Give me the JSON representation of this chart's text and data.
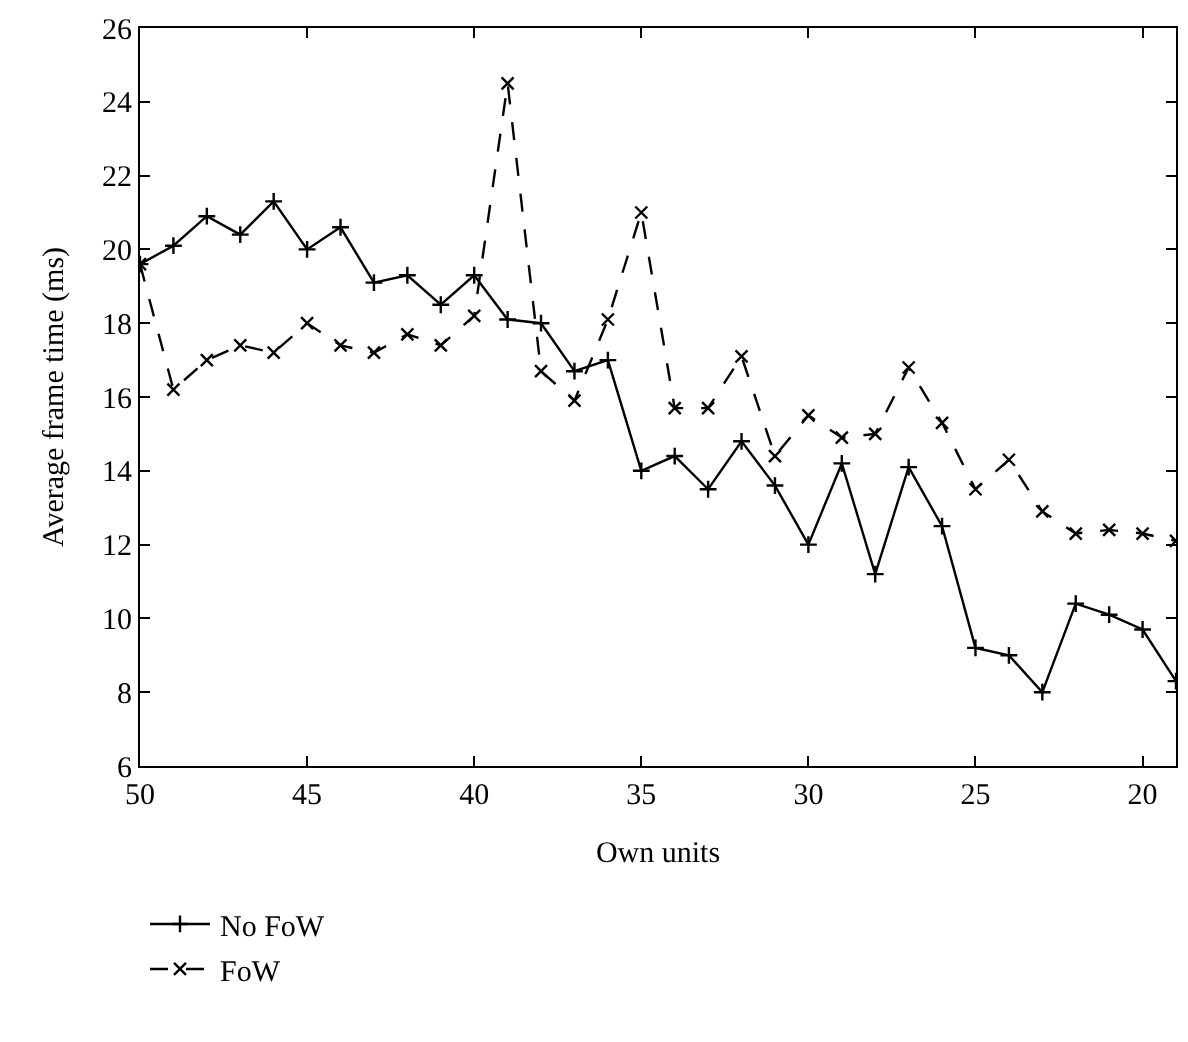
{
  "chart_data": {
    "type": "line",
    "xlabel": "Own units",
    "ylabel": "Average frame time (ms)",
    "x": [
      50,
      49,
      48,
      47,
      46,
      45,
      44,
      43,
      42,
      41,
      40,
      39,
      38,
      37,
      36,
      35,
      34,
      33,
      32,
      31,
      30,
      29,
      28,
      27,
      26,
      25,
      24,
      23,
      22,
      21,
      20,
      19
    ],
    "series": [
      {
        "name": "No FoW",
        "color": "#000000",
        "marker": "cross",
        "line_style": "solid",
        "values": [
          19.6,
          20.1,
          20.9,
          20.4,
          21.3,
          20.0,
          20.6,
          19.1,
          19.3,
          18.5,
          19.3,
          18.1,
          18.0,
          16.7,
          17.0,
          14.0,
          14.4,
          13.5,
          14.8,
          13.6,
          12.0,
          14.2,
          11.2,
          14.1,
          12.5,
          9.2,
          9.0,
          8.0,
          10.4,
          10.1,
          9.7,
          8.3
        ]
      },
      {
        "name": "FoW",
        "color": "#000000",
        "marker": "x",
        "line_style": "dashed",
        "values": [
          19.6,
          16.2,
          17.0,
          17.4,
          17.2,
          18.0,
          17.4,
          17.2,
          17.7,
          17.4,
          18.2,
          24.5,
          16.7,
          15.9,
          18.1,
          21.0,
          15.7,
          15.7,
          17.1,
          14.4,
          15.5,
          14.9,
          15.0,
          16.8,
          15.3,
          13.5,
          14.3,
          12.9,
          12.3,
          12.4,
          12.3,
          12.1
        ]
      }
    ],
    "xlim": [
      50,
      19
    ],
    "xticks": [
      50,
      45,
      40,
      35,
      30,
      25,
      20
    ],
    "ylim": [
      6,
      26
    ],
    "yticks": [
      6,
      8,
      10,
      12,
      14,
      16,
      18,
      20,
      22,
      24,
      26
    ],
    "legend": "bottom left"
  }
}
